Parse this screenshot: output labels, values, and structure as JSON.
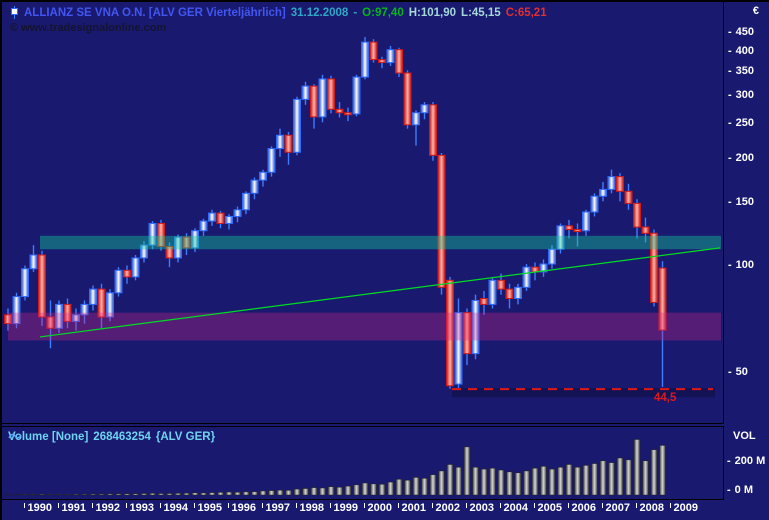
{
  "title_bar": {
    "instrument": "ALLIANZ SE VNA O.N. [ALV GER  Vierteljährlich]",
    "date": "31.12.2008",
    "dash": "-",
    "open_label": "O:97,40",
    "high_label": "H:101,90",
    "low_label": "L:45,15",
    "close_label": "C:65,21",
    "watermark": "© www.tradesignalonline.com"
  },
  "price_axis": {
    "currency": "€",
    "ticks": [
      450,
      400,
      350,
      300,
      250,
      200,
      150,
      100,
      50
    ]
  },
  "time_axis": {
    "years": [
      "1990",
      "1991",
      "1992",
      "1993",
      "1994",
      "1995",
      "1996",
      "1997",
      "1998",
      "1999",
      "2000",
      "2001",
      "2002",
      "2003",
      "2004",
      "2005",
      "2006",
      "2007",
      "2008",
      "2009"
    ]
  },
  "volume_panel": {
    "indicator": "Volume [None]",
    "last_value": "268463254",
    "instrument": "{ALV GER}",
    "axis_title": "VOL",
    "axis_ticks": [
      {
        "label": "200 M",
        "value": 200
      },
      {
        "label": "0 M",
        "value": 0
      }
    ]
  },
  "annotations": {
    "support_line": {
      "label": "44,5",
      "price": 44.5
    },
    "resistance_zone": {
      "price_from": 110,
      "price_to": 120
    },
    "support_zone": {
      "price_from": 61,
      "price_to": 73
    },
    "trendline": {
      "start_price": 62.4,
      "end_price": 111
    }
  },
  "chart_data": {
    "type": "candlestick",
    "timeframe": "quarterly",
    "scale": "logarithmic",
    "title": "ALLIANZ SE VNA O.N. (ALV GER)",
    "start_quarter": "1989-Q3",
    "end_quarter": "2008-Q4",
    "ylim": [
      40,
      480
    ],
    "last_ohlc": {
      "open": 97.4,
      "high": 101.9,
      "low": 45.15,
      "close": 65.21
    },
    "ohlc": [
      [
        72,
        75,
        65,
        68
      ],
      [
        68,
        83,
        66,
        81
      ],
      [
        81,
        99,
        79,
        97
      ],
      [
        97,
        113,
        95,
        106
      ],
      [
        106,
        109,
        67,
        71
      ],
      [
        71,
        79,
        58,
        66
      ],
      [
        66,
        79,
        64,
        77
      ],
      [
        77,
        80,
        66,
        69
      ],
      [
        69,
        75,
        65,
        72
      ],
      [
        72,
        79,
        68,
        77
      ],
      [
        77,
        87,
        74,
        85
      ],
      [
        85,
        88,
        66,
        71
      ],
      [
        71,
        85,
        69,
        83
      ],
      [
        83,
        98,
        81,
        96
      ],
      [
        96,
        99,
        88,
        92
      ],
      [
        92,
        106,
        90,
        104
      ],
      [
        104,
        116,
        101,
        113
      ],
      [
        113,
        132,
        110,
        130
      ],
      [
        130,
        133,
        109,
        112
      ],
      [
        112,
        115,
        98,
        104
      ],
      [
        104,
        121,
        101,
        119
      ],
      [
        119,
        122,
        106,
        111
      ],
      [
        111,
        126,
        108,
        124
      ],
      [
        124,
        134,
        120,
        132
      ],
      [
        132,
        142,
        128,
        139
      ],
      [
        139,
        141,
        126,
        130
      ],
      [
        130,
        138,
        125,
        136
      ],
      [
        136,
        145,
        131,
        142
      ],
      [
        142,
        160,
        138,
        158
      ],
      [
        158,
        175,
        152,
        172
      ],
      [
        172,
        184,
        165,
        181
      ],
      [
        181,
        214,
        176,
        211
      ],
      [
        211,
        240,
        200,
        230
      ],
      [
        230,
        235,
        190,
        206
      ],
      [
        206,
        295,
        202,
        290
      ],
      [
        290,
        325,
        280,
        316
      ],
      [
        316,
        320,
        240,
        259
      ],
      [
        259,
        340,
        250,
        331
      ],
      [
        331,
        338,
        265,
        272
      ],
      [
        272,
        285,
        258,
        266
      ],
      [
        266,
        275,
        252,
        264
      ],
      [
        264,
        340,
        260,
        335
      ],
      [
        335,
        434,
        330,
        420
      ],
      [
        420,
        428,
        368,
        375
      ],
      [
        375,
        382,
        355,
        368
      ],
      [
        368,
        410,
        360,
        400
      ],
      [
        400,
        405,
        335,
        344
      ],
      [
        344,
        350,
        240,
        246
      ],
      [
        246,
        270,
        215,
        266
      ],
      [
        266,
        285,
        255,
        280
      ],
      [
        280,
        285,
        195,
        202
      ],
      [
        202,
        205,
        82,
        86
      ],
      [
        90,
        92,
        44.6,
        45.5
      ],
      [
        46,
        80,
        44.8,
        73
      ],
      [
        73,
        75,
        52,
        56
      ],
      [
        56,
        82,
        54,
        79
      ],
      [
        80,
        84,
        72,
        77
      ],
      [
        77,
        92,
        75,
        90
      ],
      [
        90,
        94,
        82,
        85
      ],
      [
        85,
        88,
        75,
        80
      ],
      [
        80,
        88,
        77,
        86
      ],
      [
        86,
        100,
        84,
        98
      ],
      [
        98,
        101,
        90,
        95
      ],
      [
        95,
        103,
        92,
        100
      ],
      [
        100,
        113,
        97,
        110
      ],
      [
        110,
        130,
        107,
        128
      ],
      [
        128,
        133,
        118,
        125
      ],
      [
        125,
        130,
        112,
        124
      ],
      [
        124,
        142,
        120,
        140
      ],
      [
        140,
        158,
        136,
        155
      ],
      [
        155,
        170,
        150,
        162
      ],
      [
        162,
        184,
        158,
        176
      ],
      [
        176,
        180,
        150,
        160
      ],
      [
        160,
        168,
        142,
        148
      ],
      [
        148,
        152,
        118,
        127
      ],
      [
        127,
        135,
        115,
        122
      ],
      [
        122,
        125,
        76,
        78
      ],
      [
        97.4,
        101.9,
        45.15,
        65.21
      ]
    ],
    "volume_millions": [
      2,
      2,
      3,
      3,
      4,
      3,
      3,
      3,
      4,
      4,
      5,
      5,
      6,
      6,
      7,
      7,
      8,
      9,
      8,
      8,
      9,
      10,
      12,
      11,
      13,
      14,
      16,
      15,
      17,
      18,
      22,
      24,
      26,
      25,
      32,
      35,
      40,
      38,
      45,
      42,
      48,
      55,
      65,
      60,
      58,
      70,
      85,
      80,
      95,
      90,
      110,
      130,
      165,
      150,
      260,
      150,
      140,
      145,
      135,
      125,
      120,
      130,
      145,
      155,
      140,
      150,
      165,
      150,
      160,
      170,
      185,
      175,
      200,
      190,
      300,
      185,
      245,
      268
    ]
  },
  "colors": {
    "background": "#191970",
    "up_border": "#2e6bff",
    "down_border": "#d01818",
    "wick": "#3f7dff",
    "trendline": "#00dd22",
    "support_line": "#e01818",
    "resistance_zone": "rgba(16,210,150,0.40)",
    "support_zone": "rgba(210,40,130,0.33)",
    "title_text": "#4256f0",
    "date_text": "#2fa8c8",
    "open_text": "#00b818",
    "hl_text": "#a6d8da",
    "close_text": "#e03030",
    "header_text": "#6fd2ee",
    "axis_text": "#ffffff"
  }
}
